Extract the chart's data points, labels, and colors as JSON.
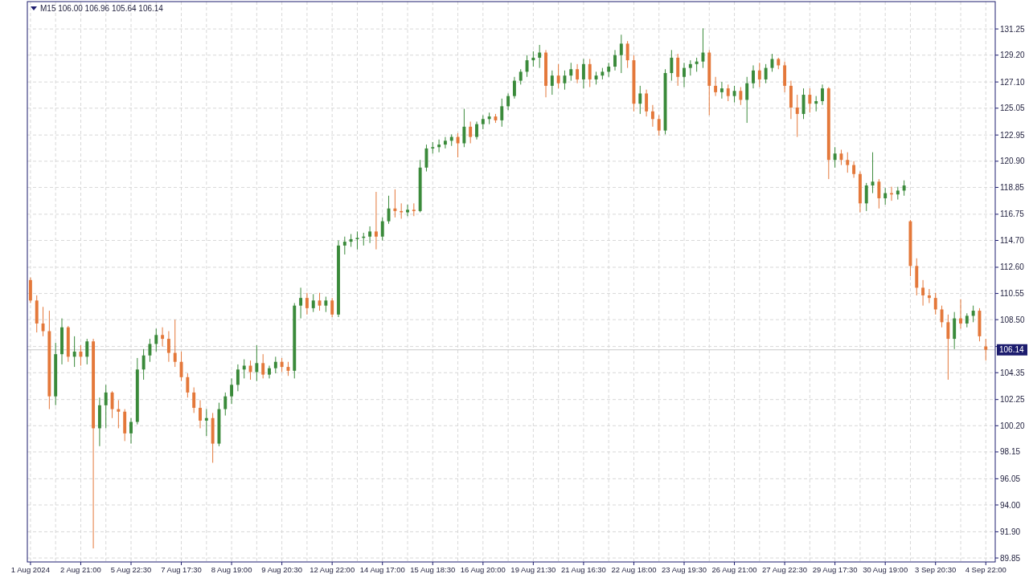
{
  "chart_data": {
    "type": "candlestick",
    "title": "M15 106.00 106.96 105.64 106.14",
    "categories": [
      "1 Aug 2024",
      null,
      null,
      null,
      null,
      null,
      null,
      null,
      "2 Aug 21:00",
      null,
      null,
      null,
      null,
      null,
      null,
      null,
      "5 Aug 22:30",
      null,
      null,
      null,
      null,
      null,
      null,
      null,
      "7 Aug 17:30",
      null,
      null,
      null,
      null,
      null,
      null,
      null,
      "8 Aug 19:00",
      null,
      null,
      null,
      null,
      null,
      null,
      null,
      "9 Aug 20:30",
      null,
      null,
      null,
      null,
      null,
      null,
      null,
      "12 Aug 22:00",
      null,
      null,
      null,
      null,
      null,
      null,
      null,
      "14 Aug 17:00",
      null,
      null,
      null,
      null,
      null,
      null,
      null,
      "15 Aug 18:30",
      null,
      null,
      null,
      null,
      null,
      null,
      null,
      "16 Aug 20:00",
      null,
      null,
      null,
      null,
      null,
      null,
      null,
      "19 Aug 21:30",
      null,
      null,
      null,
      null,
      null,
      null,
      null,
      "21 Aug 16:30",
      null,
      null,
      null,
      null,
      null,
      null,
      null,
      "22 Aug 18:00",
      null,
      null,
      null,
      null,
      null,
      null,
      null,
      "23 Aug 19:30",
      null,
      null,
      null,
      null,
      null,
      null,
      null,
      "26 Aug 21:00",
      null,
      null,
      null,
      null,
      null,
      null,
      null,
      "27 Aug 22:30",
      null,
      null,
      null,
      null,
      null,
      null,
      null,
      "29 Aug 17:30",
      null,
      null,
      null,
      null,
      null,
      null,
      null,
      "30 Aug 19:00",
      null,
      null,
      null,
      null,
      null,
      null,
      null,
      "3 Sep 20:30",
      null,
      null,
      null,
      null,
      null,
      null,
      null,
      "4 Sep 22:00",
      null
    ],
    "ohlc": [
      [
        111.6,
        111.8,
        109.8,
        110.0
      ],
      [
        110.0,
        110.4,
        107.5,
        108.2
      ],
      [
        108.2,
        109.5,
        107.2,
        107.6
      ],
      [
        107.6,
        109.2,
        101.5,
        102.5
      ],
      [
        102.5,
        106.7,
        101.8,
        105.8
      ],
      [
        105.8,
        108.6,
        105.0,
        107.9
      ],
      [
        107.9,
        108.0,
        105.2,
        105.6
      ],
      [
        105.6,
        107.2,
        104.8,
        106.0
      ],
      [
        106.0,
        106.5,
        104.9,
        105.6
      ],
      [
        105.6,
        107.0,
        105.0,
        106.8
      ],
      [
        106.8,
        107.0,
        90.6,
        100.0
      ],
      [
        100.0,
        102.4,
        98.6,
        101.8
      ],
      [
        101.8,
        103.4,
        100.0,
        102.8
      ],
      [
        102.8,
        102.9,
        100.8,
        101.5
      ],
      [
        101.5,
        102.2,
        100.0,
        101.3
      ],
      [
        101.3,
        101.5,
        99.0,
        99.6
      ],
      [
        99.6,
        100.8,
        98.8,
        100.5
      ],
      [
        100.5,
        105.5,
        100.3,
        104.6
      ],
      [
        104.6,
        106.2,
        103.8,
        105.7
      ],
      [
        105.7,
        107.0,
        105.2,
        106.6
      ],
      [
        106.6,
        107.8,
        106.0,
        107.3
      ],
      [
        107.3,
        107.9,
        106.4,
        107.0
      ],
      [
        107.0,
        107.6,
        105.2,
        105.9
      ],
      [
        105.9,
        108.5,
        104.8,
        105.2
      ],
      [
        105.2,
        106.0,
        103.7,
        104.0
      ],
      [
        104.0,
        104.3,
        102.4,
        102.8
      ],
      [
        102.8,
        103.2,
        101.2,
        101.6
      ],
      [
        101.6,
        102.2,
        100.0,
        100.6
      ],
      [
        100.6,
        101.5,
        99.4,
        100.8
      ],
      [
        100.8,
        101.2,
        97.3,
        98.8
      ],
      [
        98.8,
        102.0,
        98.6,
        101.5
      ],
      [
        101.5,
        102.8,
        101.0,
        102.5
      ],
      [
        102.5,
        103.9,
        101.9,
        103.4
      ],
      [
        103.4,
        105.0,
        102.9,
        104.6
      ],
      [
        104.6,
        105.4,
        103.9,
        104.9
      ],
      [
        104.9,
        105.3,
        103.8,
        104.4
      ],
      [
        104.4,
        106.5,
        103.7,
        105.1
      ],
      [
        105.1,
        105.8,
        103.9,
        104.2
      ],
      [
        104.2,
        104.9,
        103.9,
        104.7
      ],
      [
        104.7,
        105.6,
        104.3,
        105.2
      ],
      [
        105.2,
        105.5,
        104.4,
        104.8
      ],
      [
        104.8,
        105.2,
        104.1,
        104.5
      ],
      [
        104.5,
        109.8,
        103.9,
        109.6
      ],
      [
        109.6,
        111.0,
        108.6,
        110.2
      ],
      [
        110.2,
        110.6,
        108.9,
        109.4
      ],
      [
        109.4,
        110.5,
        109.1,
        110.0
      ],
      [
        110.0,
        110.6,
        109.2,
        109.6
      ],
      [
        109.6,
        110.3,
        109.1,
        110.0
      ],
      [
        110.0,
        110.2,
        108.7,
        108.9
      ],
      [
        108.9,
        114.7,
        108.7,
        114.3
      ],
      [
        114.3,
        115.0,
        113.6,
        114.6
      ],
      [
        114.6,
        115.2,
        114.2,
        114.8
      ],
      [
        114.8,
        115.4,
        114.0,
        114.9
      ],
      [
        114.9,
        115.3,
        114.3,
        115.0
      ],
      [
        115.0,
        115.8,
        114.5,
        115.4
      ],
      [
        115.4,
        118.5,
        114.0,
        115.0
      ],
      [
        115.0,
        116.5,
        114.7,
        116.2
      ],
      [
        116.2,
        118.2,
        116.0,
        117.2
      ],
      [
        117.2,
        118.7,
        116.5,
        117.0
      ],
      [
        117.0,
        117.6,
        116.4,
        116.9
      ],
      [
        116.9,
        117.5,
        116.6,
        117.1
      ],
      [
        117.1,
        117.6,
        116.6,
        117.0
      ],
      [
        117.0,
        121.0,
        116.9,
        120.4
      ],
      [
        120.4,
        122.2,
        120.1,
        121.9
      ],
      [
        121.9,
        122.4,
        121.5,
        122.0
      ],
      [
        122.0,
        122.6,
        121.6,
        122.2
      ],
      [
        122.2,
        122.8,
        121.9,
        122.5
      ],
      [
        122.5,
        123.0,
        122.1,
        122.8
      ],
      [
        122.8,
        123.1,
        121.2,
        122.3
      ],
      [
        122.3,
        125.0,
        122.0,
        123.6
      ],
      [
        123.6,
        124.0,
        122.3,
        122.8
      ],
      [
        122.8,
        124.0,
        122.6,
        123.8
      ],
      [
        123.8,
        124.5,
        123.4,
        124.2
      ],
      [
        124.2,
        124.7,
        123.8,
        124.4
      ],
      [
        124.4,
        124.6,
        123.9,
        124.1
      ],
      [
        124.1,
        125.8,
        123.6,
        125.2
      ],
      [
        125.2,
        126.2,
        124.9,
        126.0
      ],
      [
        126.0,
        127.5,
        125.8,
        127.2
      ],
      [
        127.2,
        128.1,
        126.9,
        127.9
      ],
      [
        127.9,
        129.2,
        127.5,
        128.8
      ],
      [
        128.8,
        129.5,
        128.3,
        129.0
      ],
      [
        129.0,
        130.0,
        128.2,
        129.4
      ],
      [
        129.4,
        129.6,
        125.9,
        126.8
      ],
      [
        126.8,
        128.0,
        126.1,
        127.6
      ],
      [
        127.6,
        128.5,
        126.6,
        127.0
      ],
      [
        127.0,
        128.0,
        126.5,
        127.6
      ],
      [
        127.6,
        128.6,
        127.2,
        128.1
      ],
      [
        128.1,
        128.5,
        127.0,
        127.3
      ],
      [
        127.3,
        128.9,
        126.6,
        128.5
      ],
      [
        128.5,
        128.9,
        126.7,
        127.3
      ],
      [
        127.3,
        127.9,
        126.9,
        127.6
      ],
      [
        127.6,
        128.2,
        127.3,
        127.9
      ],
      [
        127.9,
        128.6,
        127.5,
        128.3
      ],
      [
        128.3,
        129.6,
        128.0,
        129.2
      ],
      [
        129.2,
        130.8,
        127.8,
        130.1
      ],
      [
        130.1,
        130.3,
        128.2,
        128.8
      ],
      [
        128.8,
        129.2,
        124.8,
        125.4
      ],
      [
        125.4,
        126.8,
        124.6,
        126.2
      ],
      [
        126.2,
        126.5,
        124.4,
        124.8
      ],
      [
        124.8,
        125.3,
        123.6,
        124.2
      ],
      [
        124.2,
        124.5,
        122.9,
        123.3
      ],
      [
        123.3,
        128.1,
        123.0,
        127.8
      ],
      [
        127.8,
        129.6,
        127.2,
        129.0
      ],
      [
        129.0,
        129.3,
        126.8,
        127.5
      ],
      [
        127.5,
        128.6,
        126.7,
        128.2
      ],
      [
        128.2,
        128.8,
        127.6,
        128.5
      ],
      [
        128.5,
        129.0,
        127.9,
        128.7
      ],
      [
        128.7,
        131.3,
        128.2,
        129.4
      ],
      [
        129.4,
        129.6,
        124.5,
        126.8
      ],
      [
        126.8,
        127.5,
        126.0,
        126.3
      ],
      [
        126.3,
        127.1,
        125.8,
        126.6
      ],
      [
        126.6,
        126.9,
        125.6,
        126.0
      ],
      [
        126.0,
        126.8,
        125.5,
        126.4
      ],
      [
        126.4,
        126.7,
        125.3,
        125.7
      ],
      [
        125.7,
        127.5,
        123.9,
        127.0
      ],
      [
        127.0,
        128.4,
        126.6,
        128.0
      ],
      [
        128.0,
        128.6,
        126.7,
        127.3
      ],
      [
        127.3,
        128.5,
        127.0,
        128.2
      ],
      [
        128.2,
        129.3,
        127.9,
        128.9
      ],
      [
        128.9,
        129.0,
        128.1,
        128.4
      ],
      [
        128.4,
        128.7,
        126.3,
        126.8
      ],
      [
        126.8,
        127.2,
        124.2,
        125.1
      ],
      [
        125.1,
        126.1,
        122.8,
        124.6
      ],
      [
        124.6,
        126.6,
        124.2,
        126.1
      ],
      [
        126.1,
        126.6,
        124.7,
        125.4
      ],
      [
        125.4,
        126.0,
        124.8,
        125.6
      ],
      [
        125.6,
        126.9,
        125.3,
        126.6
      ],
      [
        126.6,
        126.7,
        119.5,
        121.0
      ],
      [
        121.0,
        122.0,
        120.4,
        121.5
      ],
      [
        121.5,
        121.8,
        120.6,
        121.0
      ],
      [
        121.0,
        121.6,
        120.0,
        120.6
      ],
      [
        120.6,
        120.9,
        119.6,
        119.9
      ],
      [
        119.9,
        120.1,
        116.9,
        117.6
      ],
      [
        117.6,
        119.2,
        117.0,
        119.0
      ],
      [
        119.0,
        121.6,
        118.4,
        119.3
      ],
      [
        119.3,
        119.5,
        117.2,
        118.0
      ],
      [
        118.0,
        118.8,
        117.5,
        118.4
      ],
      [
        118.4,
        118.9,
        117.8,
        118.3
      ],
      [
        118.3,
        118.9,
        117.9,
        118.6
      ],
      [
        118.6,
        119.4,
        118.2,
        119.0
      ],
      [
        116.2,
        116.3,
        111.9,
        112.7
      ],
      [
        112.7,
        113.3,
        110.4,
        111.0
      ],
      [
        111.0,
        111.6,
        109.6,
        110.4
      ],
      [
        110.4,
        110.9,
        109.8,
        110.2
      ],
      [
        110.2,
        110.6,
        108.9,
        109.3
      ],
      [
        109.3,
        109.6,
        107.9,
        108.3
      ],
      [
        108.3,
        108.9,
        103.8,
        107.0
      ],
      [
        107.0,
        109.1,
        106.2,
        108.6
      ],
      [
        108.6,
        110.1,
        107.8,
        108.2
      ],
      [
        108.2,
        109.0,
        107.9,
        108.8
      ],
      [
        108.8,
        109.6,
        108.3,
        109.2
      ],
      [
        109.2,
        109.4,
        106.8,
        107.2
      ],
      [
        106.4,
        107.0,
        105.3,
        106.14
      ],
      null
    ],
    "colors": [
      "#e4783a",
      "#e4783a",
      "#e4783a",
      "#e4783a",
      "#3a8a3a",
      "#3a8a3a",
      "#e4783a",
      "#3a8a3a",
      "#e4783a",
      "#3a8a3a",
      "#e4783a",
      "#3a8a3a",
      "#3a8a3a",
      "#e4783a",
      "#e4783a",
      "#e4783a",
      "#3a8a3a",
      "#3a8a3a",
      "#3a8a3a",
      "#3a8a3a",
      "#3a8a3a",
      "#e4783a",
      "#e4783a",
      "#e4783a",
      "#e4783a",
      "#e4783a",
      "#e4783a",
      "#e4783a",
      "#3a8a3a",
      "#e4783a",
      "#3a8a3a",
      "#3a8a3a",
      "#3a8a3a",
      "#3a8a3a",
      "#3a8a3a",
      "#e4783a",
      "#3a8a3a",
      "#e4783a",
      "#3a8a3a",
      "#3a8a3a",
      "#e4783a",
      "#e4783a",
      "#3a8a3a",
      "#3a8a3a",
      "#e4783a",
      "#3a8a3a",
      "#e4783a",
      "#3a8a3a",
      "#e4783a",
      "#3a8a3a",
      "#3a8a3a",
      "#3a8a3a",
      "#3a8a3a",
      "#3a8a3a",
      "#3a8a3a",
      "#e4783a",
      "#3a8a3a",
      "#3a8a3a",
      "#e4783a",
      "#e4783a",
      "#3a8a3a",
      "#e4783a",
      "#3a8a3a",
      "#3a8a3a",
      "#3a8a3a",
      "#3a8a3a",
      "#3a8a3a",
      "#3a8a3a",
      "#e4783a",
      "#3a8a3a",
      "#e4783a",
      "#3a8a3a",
      "#3a8a3a",
      "#3a8a3a",
      "#e4783a",
      "#3a8a3a",
      "#3a8a3a",
      "#3a8a3a",
      "#3a8a3a",
      "#3a8a3a",
      "#3a8a3a",
      "#3a8a3a",
      "#e4783a",
      "#3a8a3a",
      "#e4783a",
      "#3a8a3a",
      "#3a8a3a",
      "#e4783a",
      "#3a8a3a",
      "#e4783a",
      "#3a8a3a",
      "#3a8a3a",
      "#3a8a3a",
      "#3a8a3a",
      "#3a8a3a",
      "#e4783a",
      "#e4783a",
      "#3a8a3a",
      "#e4783a",
      "#e4783a",
      "#e4783a",
      "#3a8a3a",
      "#3a8a3a",
      "#e4783a",
      "#3a8a3a",
      "#3a8a3a",
      "#3a8a3a",
      "#3a8a3a",
      "#e4783a",
      "#e4783a",
      "#3a8a3a",
      "#e4783a",
      "#3a8a3a",
      "#e4783a",
      "#3a8a3a",
      "#3a8a3a",
      "#e4783a",
      "#3a8a3a",
      "#3a8a3a",
      "#e4783a",
      "#e4783a",
      "#e4783a",
      "#e4783a",
      "#3a8a3a",
      "#e4783a",
      "#3a8a3a",
      "#3a8a3a",
      "#e4783a",
      "#3a8a3a",
      "#e4783a",
      "#e4783a",
      "#e4783a",
      "#e4783a",
      "#3a8a3a",
      "#3a8a3a",
      "#e4783a",
      "#3a8a3a",
      "#e4783a",
      "#3a8a3a",
      "#3a8a3a",
      "#e4783a",
      "#e4783a",
      "#e4783a",
      "#e4783a",
      "#e4783a",
      "#e4783a",
      "#e4783a",
      "#3a8a3a",
      "#e4783a",
      "#3a8a3a",
      "#3a8a3a",
      "#e4783a",
      "#e4783a",
      null
    ],
    "ylim": [
      89.54,
      133.39
    ],
    "yticks": [
      131.25,
      {
        "value": 129.2,
        "label": "129.20"
      },
      {
        "value": 127.1,
        "label": "127.10"
      },
      125.05,
      122.95,
      {
        "value": 120.9,
        "label": "120.90"
      },
      118.85,
      116.75,
      {
        "value": 114.7,
        "label": "114.70"
      },
      {
        "value": 112.6,
        "label": "112.60"
      },
      110.55,
      {
        "value": 108.5,
        "label": "108.50"
      },
      {
        "value": 106.4,
        "label": null
      },
      104.35,
      102.25,
      {
        "value": 100.2,
        "label": "100.20"
      },
      98.15,
      96.05,
      {
        "value": 94,
        "label": "94.00"
      },
      {
        "value": 91.9,
        "label": "91.90"
      },
      89.85
    ],
    "ref_lines": [
      {
        "axis": "y",
        "value": 106.14,
        "label": "106.14",
        "color": "#c8c8c8"
      }
    ],
    "grid": true
  }
}
